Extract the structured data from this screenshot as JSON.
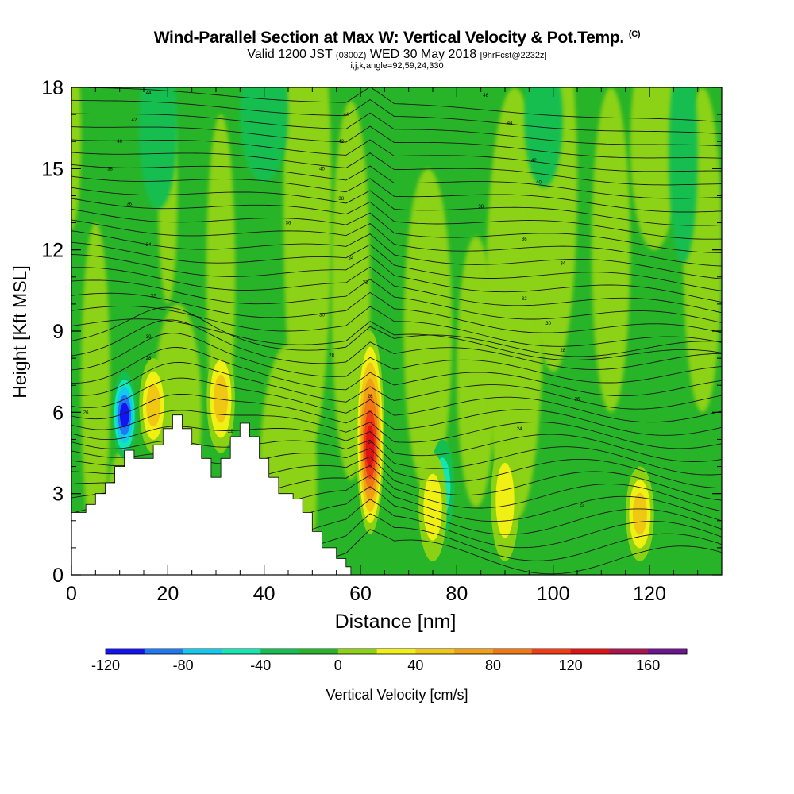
{
  "header": {
    "title": "Wind-Parallel Section at Max W: Vertical Velocity & Pot.Temp.",
    "title_mark": "(C)",
    "subtitle_main": "Valid 1200 JST",
    "subtitle_utc": "(0300Z)",
    "subtitle_date": "WED 30 May 2018",
    "subtitle_forecast": "[9hrFcst@2232z]",
    "indices": "i,j,k,angle=92,59,24,330"
  },
  "chart_data": {
    "type": "heatmap",
    "xlabel": "Distance [nm]",
    "ylabel": "Height [Kft MSL]",
    "xlim": [
      0,
      135
    ],
    "ylim": [
      0,
      18
    ],
    "xticks": [
      0,
      20,
      40,
      60,
      80,
      100,
      120
    ],
    "yticks": [
      0,
      3,
      6,
      9,
      12,
      15,
      18
    ],
    "colorbar": {
      "label": "Vertical Velocity [cm/s]",
      "boundaries": [
        -120,
        -100,
        -80,
        -60,
        -40,
        -20,
        0,
        20,
        40,
        60,
        80,
        100,
        120,
        140,
        160,
        180
      ],
      "tick_labels": [
        -120,
        -80,
        -40,
        0,
        40,
        80,
        120,
        160
      ],
      "colors": [
        "#1414f0",
        "#1e78f0",
        "#14c8f0",
        "#14e6b4",
        "#14be50",
        "#28b428",
        "#8cd214",
        "#f0f014",
        "#f0c814",
        "#f0a014",
        "#f07814",
        "#f03c14",
        "#dc1414",
        "#aa1450",
        "#6e148c"
      ]
    },
    "background_value_range": [
      -20,
      0
    ],
    "velocity_features": [
      {
        "x": 62,
        "z_bottom": 1.5,
        "z_top": 9.0,
        "peak_cms": 140,
        "sign": "updraft"
      },
      {
        "x": 11,
        "z_bottom": 4.3,
        "z_top": 7.5,
        "peak_cms": -110,
        "sign": "downdraft"
      },
      {
        "x": 31,
        "z_bottom": 4.5,
        "z_top": 8.5,
        "peak_cms": 60,
        "sign": "updraft"
      },
      {
        "x": 17,
        "z_bottom": 4.5,
        "z_top": 8.0,
        "peak_cms": 50,
        "sign": "updraft"
      },
      {
        "x": 90,
        "z_bottom": 0.5,
        "z_top": 5.0,
        "peak_cms": 40,
        "sign": "updraft"
      },
      {
        "x": 77,
        "z_bottom": 1.5,
        "z_top": 5.0,
        "peak_cms": -50,
        "sign": "downdraft"
      },
      {
        "x": 118,
        "z_bottom": 0.5,
        "z_top": 4.0,
        "peak_cms": 60,
        "sign": "updraft"
      },
      {
        "x": 75,
        "z_bottom": 0.5,
        "z_top": 4.5,
        "peak_cms": 40,
        "sign": "updraft"
      }
    ],
    "terrain": [
      {
        "x": 0,
        "z": 2.3
      },
      {
        "x": 3,
        "z": 2.6
      },
      {
        "x": 5,
        "z": 3.0
      },
      {
        "x": 7,
        "z": 3.4
      },
      {
        "x": 9,
        "z": 4.0
      },
      {
        "x": 11,
        "z": 4.6
      },
      {
        "x": 13,
        "z": 4.3
      },
      {
        "x": 15,
        "z": 4.3
      },
      {
        "x": 17,
        "z": 4.8
      },
      {
        "x": 19,
        "z": 5.4
      },
      {
        "x": 21,
        "z": 5.9
      },
      {
        "x": 23,
        "z": 5.4
      },
      {
        "x": 25,
        "z": 4.8
      },
      {
        "x": 27,
        "z": 4.3
      },
      {
        "x": 29,
        "z": 3.6
      },
      {
        "x": 31,
        "z": 4.3
      },
      {
        "x": 33,
        "z": 5.1
      },
      {
        "x": 35,
        "z": 5.6
      },
      {
        "x": 37,
        "z": 5.1
      },
      {
        "x": 39,
        "z": 4.3
      },
      {
        "x": 41,
        "z": 3.6
      },
      {
        "x": 43,
        "z": 3.0
      },
      {
        "x": 46,
        "z": 2.8
      },
      {
        "x": 48,
        "z": 2.3
      },
      {
        "x": 50,
        "z": 1.6
      },
      {
        "x": 52,
        "z": 1.0
      },
      {
        "x": 55,
        "z": 0.6
      },
      {
        "x": 57,
        "z": 0.3
      },
      {
        "x": 58,
        "z": 0.0
      }
    ],
    "theta_contour_labels": [
      {
        "x": 16,
        "z": 17.8,
        "text": "44"
      },
      {
        "x": 13,
        "z": 16.8,
        "text": "42"
      },
      {
        "x": 10,
        "z": 16.0,
        "text": "40"
      },
      {
        "x": 8,
        "z": 15.0,
        "text": "38"
      },
      {
        "x": 12,
        "z": 13.7,
        "text": "36"
      },
      {
        "x": 16,
        "z": 12.2,
        "text": "34"
      },
      {
        "x": 17,
        "z": 10.3,
        "text": "32"
      },
      {
        "x": 16,
        "z": 8.8,
        "text": "30"
      },
      {
        "x": 16,
        "z": 8.0,
        "text": "28"
      },
      {
        "x": 3,
        "z": 6.0,
        "text": "26"
      },
      {
        "x": 57,
        "z": 17.0,
        "text": "44"
      },
      {
        "x": 56,
        "z": 16.0,
        "text": "42"
      },
      {
        "x": 52,
        "z": 15.0,
        "text": "40"
      },
      {
        "x": 56,
        "z": 13.9,
        "text": "38"
      },
      {
        "x": 45,
        "z": 13.0,
        "text": "36"
      },
      {
        "x": 58,
        "z": 11.7,
        "text": "34"
      },
      {
        "x": 61,
        "z": 10.8,
        "text": "32"
      },
      {
        "x": 52,
        "z": 9.6,
        "text": "30"
      },
      {
        "x": 54,
        "z": 8.1,
        "text": "28"
      },
      {
        "x": 62,
        "z": 6.6,
        "text": "26"
      },
      {
        "x": 62,
        "z": 4.9,
        "text": "24"
      },
      {
        "x": 33,
        "z": 5.3,
        "text": "22"
      },
      {
        "x": 86,
        "z": 17.7,
        "text": "46"
      },
      {
        "x": 91,
        "z": 16.7,
        "text": "44"
      },
      {
        "x": 96,
        "z": 15.3,
        "text": "42"
      },
      {
        "x": 97,
        "z": 14.5,
        "text": "40"
      },
      {
        "x": 85,
        "z": 13.6,
        "text": "38"
      },
      {
        "x": 94,
        "z": 12.4,
        "text": "36"
      },
      {
        "x": 102,
        "z": 11.5,
        "text": "34"
      },
      {
        "x": 94,
        "z": 10.2,
        "text": "32"
      },
      {
        "x": 99,
        "z": 9.3,
        "text": "30"
      },
      {
        "x": 102,
        "z": 8.3,
        "text": "28"
      },
      {
        "x": 105,
        "z": 6.5,
        "text": "26"
      },
      {
        "x": 93,
        "z": 5.4,
        "text": "24"
      },
      {
        "x": 106,
        "z": 2.6,
        "text": "22"
      }
    ]
  }
}
